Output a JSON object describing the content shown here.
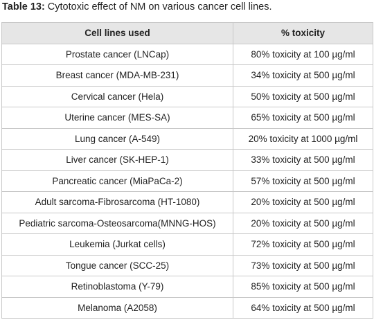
{
  "caption": {
    "label": "Table 13:",
    "text": " Cytotoxic effect of NM on various cancer cell lines."
  },
  "table": {
    "headers": [
      "Cell lines used",
      "% toxicity"
    ],
    "rows": [
      [
        "Prostate cancer (LNCap)",
        "80% toxicity at 100 µg/ml"
      ],
      [
        "Breast cancer (MDA-MB-231)",
        "34% toxicity at 500 µg/ml"
      ],
      [
        "Cervical cancer (Hela)",
        "50% toxicity at 500 µg/ml"
      ],
      [
        "Uterine cancer (MES-SA)",
        "65% toxicity at 500 µg/ml"
      ],
      [
        "Lung cancer (A-549)",
        "20% toxicity at 1000 µg/ml"
      ],
      [
        "Liver cancer (SK-HEP-1)",
        "33% toxicity at 500 µg/ml"
      ],
      [
        "Pancreatic cancer (MiaPaCa-2)",
        "57% toxicity at 500 µg/ml"
      ],
      [
        "Adult sarcoma-Fibrosarcoma (HT-1080)",
        "20% toxicity at 500 µg/ml"
      ],
      [
        "Pediatric sarcoma-Osteosarcoma(MNNG-HOS)",
        "20% toxicity at 500 µg/ml"
      ],
      [
        "Leukemia (Jurkat cells)",
        "72% toxicity at 500 µg/ml"
      ],
      [
        "Tongue cancer (SCC-25)",
        "73% toxicity at 500 µg/ml"
      ],
      [
        "Retinoblastoma (Y-79)",
        "85% toxicity at 500 µg/ml"
      ],
      [
        "Melanoma (A2058)",
        "64% toxicity at 500 µg/ml"
      ]
    ]
  }
}
